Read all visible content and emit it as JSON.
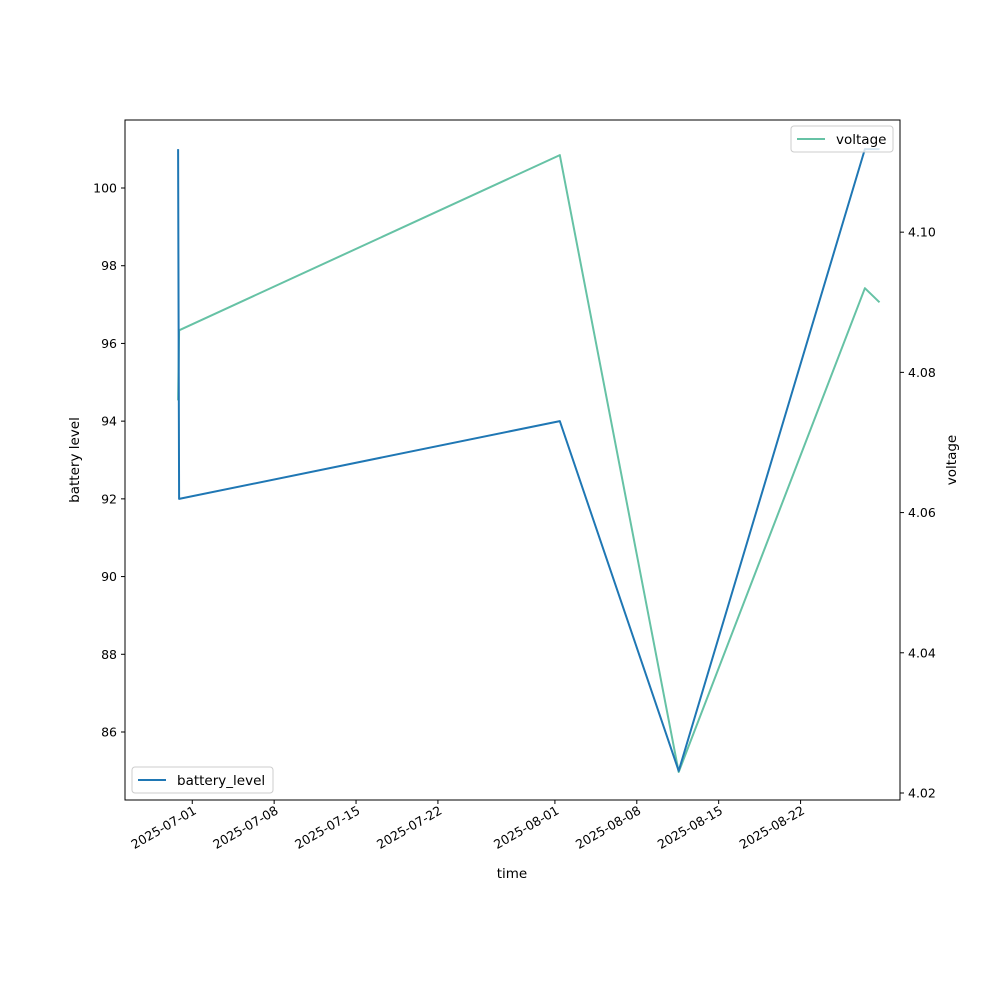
{
  "chart_data": {
    "type": "line",
    "xlabel": "time",
    "ylabel": "battery level",
    "y2label": "voltage",
    "x_ticks": [
      "2025-07-01",
      "2025-07-08",
      "2025-07-15",
      "2025-07-22",
      "2025-08-01",
      "2025-08-08",
      "2025-08-15",
      "2025-08-22"
    ],
    "y_ticks": [
      "86",
      "88",
      "90",
      "92",
      "94",
      "96",
      "98",
      "100"
    ],
    "y2_ticks": [
      "4.02",
      "4.04",
      "4.06",
      "4.08",
      "4.10"
    ],
    "xlim": [
      "2025-06-25T06:00",
      "2025-08-30T12:00"
    ],
    "ylim": [
      84.25,
      101.75
    ],
    "y2lim": [
      4.019,
      4.116
    ],
    "grid": false,
    "series": [
      {
        "name": "battery_level",
        "axis": "left",
        "color": "#1f77b4",
        "legend_position": "lower left",
        "x": [
          "2025-06-29T19:00",
          "2025-06-29T21:00",
          "2025-08-01T10:00",
          "2025-08-11T14:00",
          "2025-08-27T12:00",
          "2025-08-28T18:00"
        ],
        "values": [
          101,
          92,
          94,
          85,
          101,
          101
        ]
      },
      {
        "name": "voltage",
        "axis": "right",
        "color": "#66c2a5",
        "legend_position": "upper right",
        "x": [
          "2025-06-29T19:00",
          "2025-06-29T21:00",
          "2025-08-01T10:00",
          "2025-08-11T14:00",
          "2025-08-27T12:00",
          "2025-08-28T18:00"
        ],
        "values": [
          4.076,
          4.086,
          4.111,
          4.023,
          4.092,
          4.09
        ]
      }
    ]
  }
}
